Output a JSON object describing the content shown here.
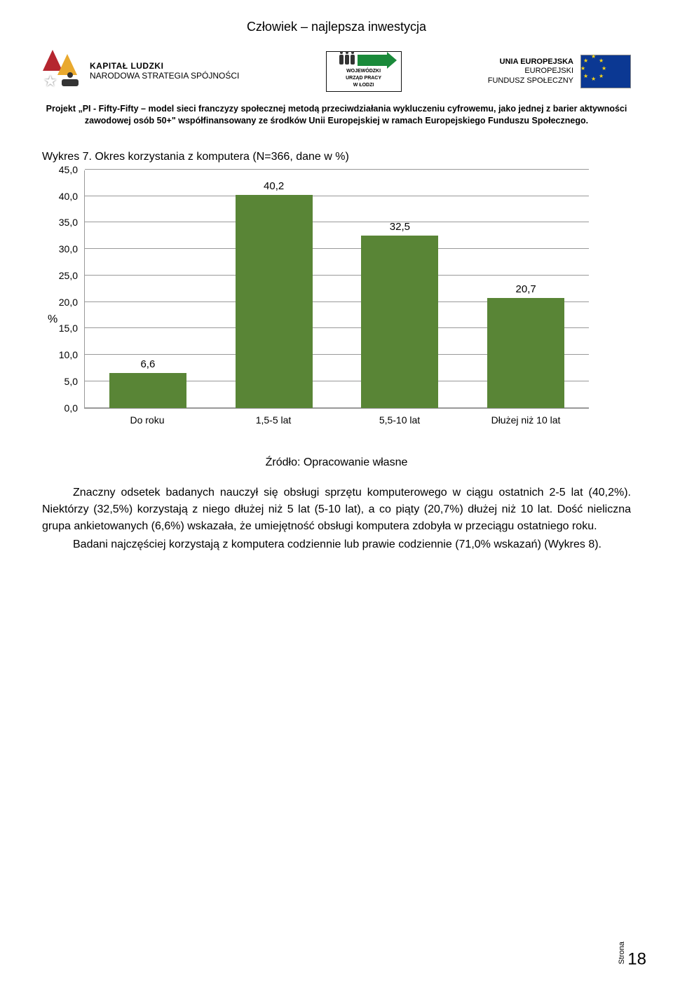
{
  "header": {
    "top_title": "Człowiek – najlepsza inwestycja",
    "kl": {
      "line1": "KAPITAŁ LUDZKI",
      "line2": "NARODOWA STRATEGIA SPÓJNOŚCI"
    },
    "center": {
      "line1": "WOJEWÓDZKI",
      "line2": "URZĄD PRACY",
      "line3": "W ŁODZI"
    },
    "eu": {
      "line1": "UNIA EUROPEJSKA",
      "line2": "EUROPEJSKI",
      "line3": "FUNDUSZ SPOŁECZNY"
    },
    "project": "Projekt „PI - Fifty-Fifty – model sieci franczyzy społecznej metodą przeciwdziałania wykluczeniu cyfrowemu, jako jednej z barier aktywności zawodowej osób 50+\" współfinansowany ze środków Unii Europejskiej w ramach Europejskiego Funduszu Społecznego."
  },
  "chart": {
    "type": "bar",
    "title": "Wykres 7. Okres korzystania z komputera (N=366, dane w %)",
    "categories": [
      "Do roku",
      "1,5-5 lat",
      "5,5-10 lat",
      "Dłużej niż 10 lat"
    ],
    "values": [
      6.6,
      40.2,
      32.5,
      20.7
    ],
    "value_labels": [
      "6,6",
      "40,2",
      "32,5",
      "20,7"
    ],
    "bar_color": "#598536",
    "grid_color": "#999999",
    "background_color": "#ffffff",
    "text_color": "#000000",
    "ylim": [
      0,
      45
    ],
    "ytick_labels": [
      "0,0",
      "5,0",
      "10,0",
      "15,0",
      "20,0",
      "25,0",
      "30,0",
      "35,0",
      "40,0",
      "45,0"
    ],
    "ytick_values": [
      0,
      5,
      10,
      15,
      20,
      25,
      30,
      35,
      40,
      45
    ],
    "ylabel": "%",
    "label_fontsize": 14,
    "bar_width": 0.62
  },
  "source": "Źródło: Opracowanie własne",
  "body": {
    "p1": "Znaczny odsetek badanych nauczył się obsługi sprzętu komputerowego w ciągu ostatnich 2-5 lat (40,2%). Niektórzy (32,5%) korzystają z niego dłużej niż 5 lat (5-10 lat), a co piąty (20,7%) dłużej niż 10 lat. Dość nieliczna grupa ankietowanych (6,6%) wskazała, że umiejętność obsługi komputera zdobyła w przeciągu ostatniego roku.",
    "p2": "Badani najczęściej korzystają z komputera codziennie lub prawie codziennie (71,0% wskazań) (Wykres 8)."
  },
  "page_number": {
    "label": "Strona",
    "num": "18"
  }
}
